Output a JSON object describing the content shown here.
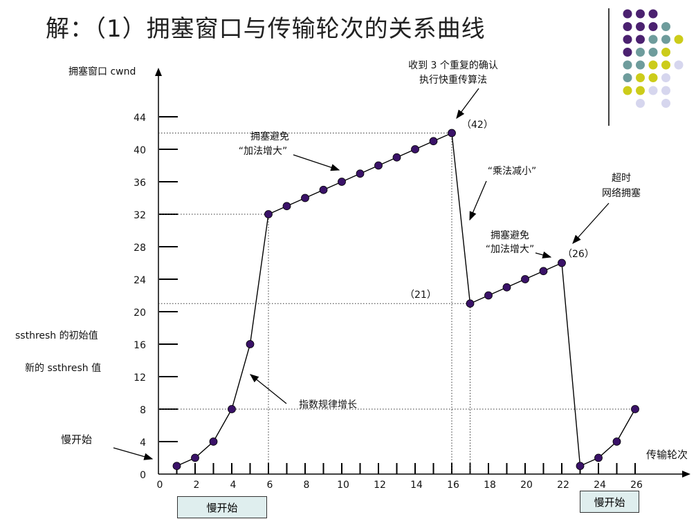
{
  "title": "解：（1）拥塞窗口与传输轮次的关系曲线",
  "chart_data": {
    "type": "line",
    "ylabel": "拥塞窗口 cwnd",
    "xlabel": "传输轮次",
    "xlim": [
      0,
      27
    ],
    "ylim": [
      0,
      46
    ],
    "y_ticks": [
      0,
      4,
      8,
      12,
      16,
      20,
      24,
      28,
      32,
      36,
      40,
      44
    ],
    "x_ticks": [
      0,
      2,
      4,
      6,
      8,
      10,
      12,
      14,
      16,
      18,
      20,
      22,
      24,
      26
    ],
    "series": [
      {
        "x": [
          1,
          2,
          3,
          4,
          5,
          6,
          7,
          8,
          9,
          10,
          11,
          12,
          13,
          14,
          15,
          16,
          17,
          18,
          19,
          20,
          21,
          22,
          23,
          24,
          25,
          26
        ],
        "y": [
          1,
          2,
          4,
          8,
          16,
          32,
          33,
          34,
          35,
          36,
          37,
          38,
          39,
          40,
          41,
          42,
          21,
          22,
          23,
          24,
          25,
          26,
          1,
          2,
          4,
          8
        ]
      }
    ],
    "reference_lines": [
      {
        "axis": "y",
        "value": 42,
        "x_to": 16
      },
      {
        "axis": "y",
        "value": 32,
        "x_to": 6
      },
      {
        "axis": "y",
        "value": 21,
        "x_to": 17
      },
      {
        "axis": "y",
        "value": 8,
        "x_to": 26
      },
      {
        "axis": "x",
        "value": 6,
        "y_to": 32
      },
      {
        "axis": "x",
        "value": 16,
        "y_to": 42
      },
      {
        "axis": "x",
        "value": 17,
        "y_to": 21
      }
    ],
    "annotations": {
      "ssthresh_initial": "ssthresh 的初始值",
      "ssthresh_new": "新的 ssthresh 值",
      "slow_start_left": "慢开始",
      "exponential": "指数规律增长",
      "ca1_line1": "拥塞避免",
      "ca1_line2": "“加法增大”",
      "dup_ack_line1": "收到 3 个重复的确认",
      "dup_ack_line2": "执行快重传算法",
      "label_42": "（42）",
      "mult_decrease": "“乘法减小”",
      "label_21": "（21）",
      "ca2_line1": "拥塞避免",
      "ca2_line2": "“加法增大”",
      "label_26": "（26）",
      "timeout_line1": "超时",
      "timeout_line2": "网络拥塞",
      "slow_start_box_1": "慢开始",
      "slow_start_box_2": "慢开始"
    }
  },
  "colors": {
    "marker": "#3a1268",
    "line": "#000000",
    "purple": "#4b2170",
    "teal": "#6e9c9c",
    "yellow": "#cccc1a",
    "lavender": "#d6d6ee",
    "box_fill": "#dfeeee"
  },
  "decor_grid": [
    [
      "purple",
      "purple",
      "purple",
      "none"
    ],
    [
      "purple",
      "purple",
      "purple",
      "teal"
    ],
    [
      "purple",
      "purple",
      "teal",
      "teal",
      "yellow"
    ],
    [
      "purple",
      "teal",
      "teal",
      "yellow"
    ],
    [
      "teal",
      "teal",
      "yellow",
      "yellow",
      "lavender"
    ],
    [
      "teal",
      "yellow",
      "yellow",
      "lavender"
    ],
    [
      "yellow",
      "yellow",
      "lavender",
      "lavender"
    ],
    [
      "none",
      "lavender",
      "none",
      "lavender"
    ]
  ]
}
